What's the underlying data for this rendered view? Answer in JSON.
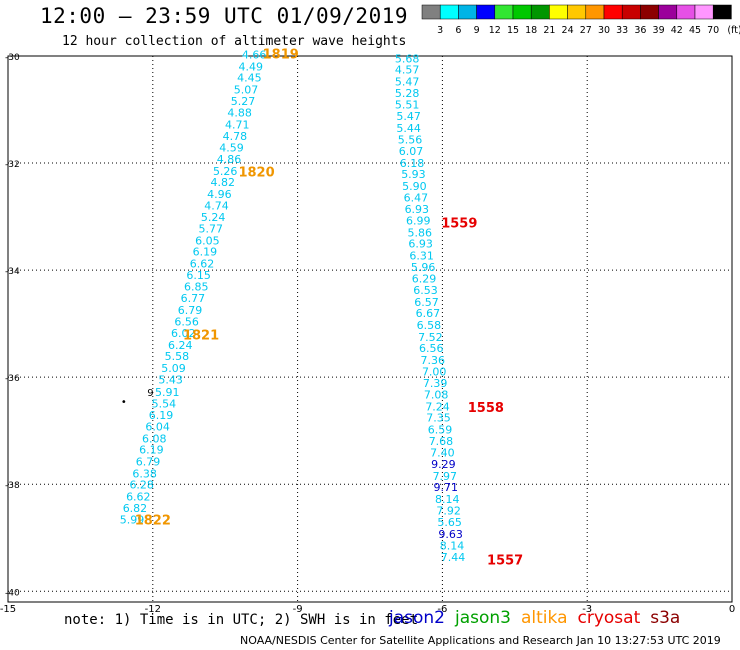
{
  "header": {
    "title": "12:00 — 23:59 UTC 01/09/2019",
    "subtitle": "12 hour collection of altimeter wave heights"
  },
  "colorbar": {
    "unit": "(ft)",
    "labels": [
      "3",
      "6",
      "9",
      "12",
      "15",
      "18",
      "21",
      "24",
      "27",
      "30",
      "33",
      "36",
      "39",
      "42",
      "45",
      "70"
    ],
    "colors": [
      "#808080",
      "#00ffff",
      "#00b4e6",
      "#0000ff",
      "#32e632",
      "#00c800",
      "#009600",
      "#ffff00",
      "#ffc800",
      "#ff9600",
      "#ff0000",
      "#c80000",
      "#8c0000",
      "#9b009b",
      "#e650e6",
      "#ff96ff",
      "#000000"
    ]
  },
  "footer": {
    "note": "note: 1) Time is in UTC; 2) SWH is in feet",
    "satellites": [
      {
        "name": "jason2",
        "color": "#0000c8"
      },
      {
        "name": "jason3",
        "color": "#00a000"
      },
      {
        "name": "altika",
        "color": "#ff9600"
      },
      {
        "name": "cryosat",
        "color": "#e60000"
      },
      {
        "name": "s3a",
        "color": "#8c0000"
      }
    ],
    "credit": "NOAA/NESDIS Center for Satellite Applications and Research   Jan 10 13:27:53 UTC 2019"
  },
  "chart_data": {
    "type": "scatter",
    "title": "12:00 — 23:59 UTC 01/09/2019",
    "subtitle": "12 hour collection of altimeter wave heights",
    "xlabel": "",
    "ylabel": "",
    "xlim": [
      -15,
      0
    ],
    "ylim": [
      -40.2,
      -30
    ],
    "xticks": [
      "-15",
      "-12",
      "-9",
      "-6",
      "-3",
      "0"
    ],
    "yticks": [
      "-30",
      "-32",
      "-34",
      "-36",
      "-38",
      "-40"
    ],
    "grid": true,
    "colors": {
      "cyan": "#00c8f0",
      "blue": "#0000c8",
      "orange": "#f09600",
      "red": "#e60000",
      "black": "#000000"
    },
    "series": [
      {
        "name": "altika",
        "points": [
          {
            "x": -9.9,
            "y": -30.05,
            "v": "4.66",
            "c": "cyan"
          },
          {
            "x": -9.97,
            "y": -30.27,
            "v": "4.49",
            "c": "cyan"
          },
          {
            "x": -10.0,
            "y": -30.48,
            "v": "4.45",
            "c": "cyan"
          },
          {
            "x": -10.07,
            "y": -30.7,
            "v": "5.07",
            "c": "cyan"
          },
          {
            "x": -10.13,
            "y": -30.92,
            "v": "5.27",
            "c": "cyan"
          },
          {
            "x": -10.2,
            "y": -31.13,
            "v": "4.88",
            "c": "cyan"
          },
          {
            "x": -10.25,
            "y": -31.35,
            "v": "4.71",
            "c": "cyan"
          },
          {
            "x": -10.3,
            "y": -31.57,
            "v": "4.78",
            "c": "cyan"
          },
          {
            "x": -10.37,
            "y": -31.78,
            "v": "4.59",
            "c": "cyan"
          },
          {
            "x": -10.42,
            "y": -32.0,
            "v": "4.86",
            "c": "cyan"
          },
          {
            "x": -10.5,
            "y": -32.22,
            "v": "5.26",
            "c": "cyan"
          },
          {
            "x": -10.55,
            "y": -32.43,
            "v": "4.82",
            "c": "cyan"
          },
          {
            "x": -10.62,
            "y": -32.65,
            "v": "4.96",
            "c": "cyan"
          },
          {
            "x": -10.68,
            "y": -32.87,
            "v": "4.74",
            "c": "cyan"
          },
          {
            "x": -10.75,
            "y": -33.08,
            "v": "5.24",
            "c": "cyan"
          },
          {
            "x": -10.8,
            "y": -33.3,
            "v": "5.77",
            "c": "cyan"
          },
          {
            "x": -10.87,
            "y": -33.52,
            "v": "6.05",
            "c": "cyan"
          },
          {
            "x": -10.92,
            "y": -33.73,
            "v": "6.19",
            "c": "cyan"
          },
          {
            "x": -10.98,
            "y": -33.95,
            "v": "6.62",
            "c": "cyan"
          },
          {
            "x": -11.05,
            "y": -34.17,
            "v": "6.15",
            "c": "cyan"
          },
          {
            "x": -11.1,
            "y": -34.38,
            "v": "6.85",
            "c": "cyan"
          },
          {
            "x": -11.17,
            "y": -34.6,
            "v": "6.77",
            "c": "cyan"
          },
          {
            "x": -11.23,
            "y": -34.82,
            "v": "6.79",
            "c": "cyan"
          },
          {
            "x": -11.3,
            "y": -35.03,
            "v": "6.56",
            "c": "cyan"
          },
          {
            "x": -11.37,
            "y": -35.25,
            "v": "6.02",
            "c": "cyan"
          },
          {
            "x": -11.43,
            "y": -35.47,
            "v": "6.24",
            "c": "cyan"
          },
          {
            "x": -11.5,
            "y": -35.68,
            "v": "5.58",
            "c": "cyan"
          },
          {
            "x": -11.57,
            "y": -35.9,
            "v": "5.09",
            "c": "cyan"
          },
          {
            "x": -11.63,
            "y": -36.12,
            "v": "5.43",
            "c": "cyan"
          },
          {
            "x": -11.7,
            "y": -36.35,
            "v": "5.91",
            "c": "cyan"
          },
          {
            "x": -11.77,
            "y": -36.57,
            "v": "5.54",
            "c": "cyan"
          },
          {
            "x": -11.83,
            "y": -36.78,
            "v": "6.19",
            "c": "cyan"
          },
          {
            "x": -11.9,
            "y": -37.0,
            "v": "6.04",
            "c": "cyan"
          },
          {
            "x": -11.97,
            "y": -37.22,
            "v": "6.08",
            "c": "cyan"
          },
          {
            "x": -12.03,
            "y": -37.43,
            "v": "6.19",
            "c": "cyan"
          },
          {
            "x": -12.1,
            "y": -37.65,
            "v": "6.79",
            "c": "cyan"
          },
          {
            "x": -12.17,
            "y": -37.87,
            "v": "6.38",
            "c": "cyan"
          },
          {
            "x": -12.23,
            "y": -38.08,
            "v": "6.28",
            "c": "cyan"
          },
          {
            "x": -12.3,
            "y": -38.3,
            "v": "6.62",
            "c": "cyan"
          },
          {
            "x": -12.37,
            "y": -38.52,
            "v": "6.82",
            "c": "cyan"
          },
          {
            "x": -12.43,
            "y": -38.73,
            "v": "5.99",
            "c": "cyan"
          }
        ]
      },
      {
        "name": "cryosat",
        "points": [
          {
            "x": -6.73,
            "y": -30.12,
            "v": "5.68",
            "c": "cyan"
          },
          {
            "x": -6.73,
            "y": -30.33,
            "v": "4.57",
            "c": "cyan"
          },
          {
            "x": -6.73,
            "y": -30.55,
            "v": "5.47",
            "c": "cyan"
          },
          {
            "x": -6.73,
            "y": -30.77,
            "v": "5.28",
            "c": "cyan"
          },
          {
            "x": -6.73,
            "y": -30.98,
            "v": "5.51",
            "c": "cyan"
          },
          {
            "x": -6.7,
            "y": -31.2,
            "v": "5.47",
            "c": "cyan"
          },
          {
            "x": -6.7,
            "y": -31.42,
            "v": "5.44",
            "c": "cyan"
          },
          {
            "x": -6.67,
            "y": -31.63,
            "v": "5.56",
            "c": "cyan"
          },
          {
            "x": -6.65,
            "y": -31.85,
            "v": "6.07",
            "c": "cyan"
          },
          {
            "x": -6.63,
            "y": -32.07,
            "v": "6.18",
            "c": "cyan"
          },
          {
            "x": -6.6,
            "y": -32.28,
            "v": "5.93",
            "c": "cyan"
          },
          {
            "x": -6.58,
            "y": -32.5,
            "v": "5.90",
            "c": "cyan"
          },
          {
            "x": -6.55,
            "y": -32.72,
            "v": "6.47",
            "c": "cyan"
          },
          {
            "x": -6.53,
            "y": -32.93,
            "v": "6.93",
            "c": "cyan"
          },
          {
            "x": -6.5,
            "y": -33.15,
            "v": "6.99",
            "c": "cyan"
          },
          {
            "x": -6.47,
            "y": -33.37,
            "v": "5.86",
            "c": "cyan"
          },
          {
            "x": -6.45,
            "y": -33.58,
            "v": "6.93",
            "c": "cyan"
          },
          {
            "x": -6.43,
            "y": -33.8,
            "v": "6.31",
            "c": "cyan"
          },
          {
            "x": -6.4,
            "y": -34.02,
            "v": "5.96",
            "c": "cyan"
          },
          {
            "x": -6.38,
            "y": -34.23,
            "v": "6.29",
            "c": "cyan"
          },
          {
            "x": -6.35,
            "y": -34.45,
            "v": "6.53",
            "c": "cyan"
          },
          {
            "x": -6.33,
            "y": -34.67,
            "v": "6.57",
            "c": "cyan"
          },
          {
            "x": -6.3,
            "y": -34.88,
            "v": "6.67",
            "c": "cyan"
          },
          {
            "x": -6.28,
            "y": -35.1,
            "v": "6.58",
            "c": "cyan"
          },
          {
            "x": -6.25,
            "y": -35.32,
            "v": "7.52",
            "c": "cyan"
          },
          {
            "x": -6.23,
            "y": -35.53,
            "v": "6.56",
            "c": "cyan"
          },
          {
            "x": -6.2,
            "y": -35.75,
            "v": "7.36",
            "c": "cyan"
          },
          {
            "x": -6.17,
            "y": -35.97,
            "v": "7.00",
            "c": "cyan"
          },
          {
            "x": -6.15,
            "y": -36.18,
            "v": "7.39",
            "c": "cyan"
          },
          {
            "x": -6.13,
            "y": -36.4,
            "v": "7.08",
            "c": "cyan"
          },
          {
            "x": -6.1,
            "y": -36.62,
            "v": "7.24",
            "c": "cyan"
          },
          {
            "x": -6.08,
            "y": -36.83,
            "v": "7.35",
            "c": "cyan"
          },
          {
            "x": -6.05,
            "y": -37.05,
            "v": "6.59",
            "c": "cyan"
          },
          {
            "x": -6.03,
            "y": -37.27,
            "v": "7.68",
            "c": "cyan"
          },
          {
            "x": -6.0,
            "y": -37.48,
            "v": "7.40",
            "c": "cyan"
          },
          {
            "x": -5.98,
            "y": -37.7,
            "v": "9.29",
            "c": "blue"
          },
          {
            "x": -5.95,
            "y": -37.92,
            "v": "7.97",
            "c": "cyan"
          },
          {
            "x": -5.93,
            "y": -38.13,
            "v": "9.71",
            "c": "blue"
          },
          {
            "x": -5.9,
            "y": -38.35,
            "v": "8.14",
            "c": "cyan"
          },
          {
            "x": -5.87,
            "y": -38.57,
            "v": "7.92",
            "c": "cyan"
          },
          {
            "x": -5.85,
            "y": -38.78,
            "v": "5.65",
            "c": "cyan"
          },
          {
            "x": -5.83,
            "y": -39.0,
            "v": "9.63",
            "c": "blue"
          },
          {
            "x": -5.8,
            "y": -39.22,
            "v": "8.14",
            "c": "cyan"
          },
          {
            "x": -5.78,
            "y": -39.43,
            "v": "7.44",
            "c": "cyan"
          }
        ]
      }
    ],
    "time_labels": [
      {
        "x": -9.35,
        "y": -30.05,
        "v": "1819",
        "c": "orange"
      },
      {
        "x": -9.85,
        "y": -32.25,
        "v": "1820",
        "c": "orange"
      },
      {
        "x": -11.0,
        "y": -35.3,
        "v": "1821",
        "c": "orange"
      },
      {
        "x": -12.0,
        "y": -38.75,
        "v": "1822",
        "c": "orange"
      },
      {
        "x": -5.65,
        "y": -33.2,
        "v": "1559",
        "c": "red"
      },
      {
        "x": -5.1,
        "y": -36.65,
        "v": "1558",
        "c": "red"
      },
      {
        "x": -4.7,
        "y": -39.5,
        "v": "1557",
        "c": "red"
      }
    ],
    "stray_marks": [
      {
        "x": -12.05,
        "y": -36.35,
        "v": "9",
        "c": "black"
      },
      {
        "x": -12.6,
        "y": -36.52,
        "v": "•",
        "c": "black"
      }
    ]
  }
}
